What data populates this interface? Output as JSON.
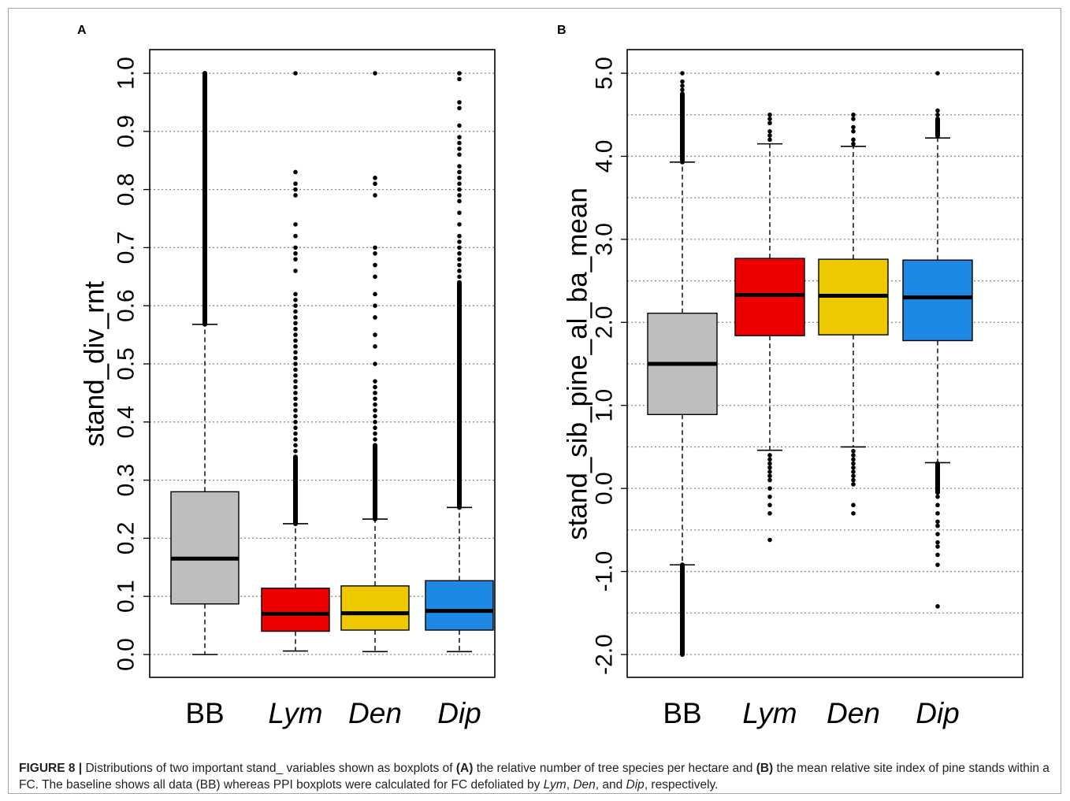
{
  "panels": [
    {
      "label": "A"
    },
    {
      "label": "B"
    }
  ],
  "caption": {
    "figure": "FIGURE 8 |",
    "pre": " Distributions of two important stand_ variables shown as boxplots of ",
    "a_label": "(A)",
    "mid1": " the relative number of tree species per hectare and ",
    "b_label": "(B)",
    "mid2": " the mean relative site index of pine stands within a FC. The baseline shows all data (BB) whereas PPI boxplots were calculated for FC defoliated by ",
    "lym": "Lym",
    "sep1": ", ",
    "den": "Den",
    "sep2": ", and ",
    "dip": "Dip",
    "post": ", respectively."
  },
  "chart_data": [
    {
      "type": "boxplot",
      "panel": "A",
      "ylabel": "stand_div_rnt",
      "ylim": [
        0.0,
        1.0
      ],
      "yticks": [
        "0.0",
        "0.1",
        "0.2",
        "0.3",
        "0.4",
        "0.5",
        "0.6",
        "0.7",
        "0.8",
        "0.9",
        "1.0"
      ],
      "grid": "horizontal dotted",
      "categories": [
        "BB",
        "Lym",
        "Den",
        "Dip"
      ],
      "category_italic": [
        false,
        true,
        true,
        true
      ],
      "colors": [
        "#bebebe",
        "#ee0000",
        "#eec900",
        "#1e88e5"
      ],
      "boxes": [
        {
          "whisker_low": 0.0,
          "q1": 0.087,
          "median": 0.165,
          "q3": 0.28,
          "whisker_high": 0.568,
          "outliers_dense_range": [
            0.568,
            1.0
          ],
          "outliers": []
        },
        {
          "whisker_low": 0.006,
          "q1": 0.04,
          "median": 0.07,
          "q3": 0.114,
          "whisker_high": 0.225,
          "outliers_dense_range": [
            0.225,
            0.34
          ],
          "outliers": [
            0.35,
            0.36,
            0.37,
            0.38,
            0.39,
            0.4,
            0.41,
            0.42,
            0.43,
            0.44,
            0.45,
            0.46,
            0.47,
            0.48,
            0.49,
            0.5,
            0.51,
            0.52,
            0.53,
            0.54,
            0.55,
            0.56,
            0.57,
            0.58,
            0.59,
            0.6,
            0.61,
            0.62,
            0.66,
            0.68,
            0.69,
            0.7,
            0.72,
            0.74,
            0.79,
            0.8,
            0.81,
            0.83,
            1.0
          ]
        },
        {
          "whisker_low": 0.005,
          "q1": 0.042,
          "median": 0.071,
          "q3": 0.118,
          "whisker_high": 0.233,
          "outliers_dense_range": [
            0.233,
            0.36
          ],
          "outliers": [
            0.37,
            0.38,
            0.39,
            0.4,
            0.41,
            0.42,
            0.43,
            0.44,
            0.45,
            0.46,
            0.47,
            0.5,
            0.53,
            0.55,
            0.58,
            0.6,
            0.62,
            0.65,
            0.67,
            0.69,
            0.7,
            0.79,
            0.81,
            0.82,
            1.0
          ]
        },
        {
          "whisker_low": 0.005,
          "q1": 0.042,
          "median": 0.075,
          "q3": 0.127,
          "whisker_high": 0.253,
          "outliers_dense_range": [
            0.253,
            0.64
          ],
          "outliers": [
            0.65,
            0.66,
            0.67,
            0.68,
            0.69,
            0.7,
            0.71,
            0.72,
            0.74,
            0.76,
            0.78,
            0.79,
            0.8,
            0.81,
            0.82,
            0.83,
            0.84,
            0.86,
            0.87,
            0.88,
            0.89,
            0.91,
            0.94,
            0.95,
            0.99,
            1.0
          ]
        }
      ]
    },
    {
      "type": "boxplot",
      "panel": "B",
      "ylabel": "stand_sib_pine_al_ba_mean",
      "ylim": [
        -2.2,
        5.3
      ],
      "yticks": [
        "-2.0",
        "-1.0",
        "0.0",
        "1.0",
        "2.0",
        "3.0",
        "4.0",
        "5.0"
      ],
      "grid": "horizontal dotted",
      "categories": [
        "BB",
        "Lym",
        "Den",
        "Dip"
      ],
      "category_italic": [
        false,
        true,
        true,
        true
      ],
      "colors": [
        "#bebebe",
        "#ee0000",
        "#eec900",
        "#1e88e5"
      ],
      "boxes": [
        {
          "whisker_low": -0.92,
          "q1": 0.89,
          "median": 1.5,
          "q3": 2.11,
          "whisker_high": 3.93,
          "outliers_dense_range": [
            3.93,
            4.75
          ],
          "outliers_dense_range_low": [
            -2.0,
            -0.92
          ],
          "outliers": [
            4.8,
            4.85,
            4.9,
            5.0
          ]
        },
        {
          "whisker_low": 0.46,
          "q1": 1.84,
          "median": 2.33,
          "q3": 2.77,
          "whisker_high": 4.15,
          "outliers_dense_range": [],
          "outliers_dense_range_low": [],
          "outliers": [
            4.2,
            4.25,
            4.3,
            4.4,
            4.45,
            4.5,
            0.4,
            0.35,
            0.3,
            0.25,
            0.2,
            0.15,
            0.1,
            0.0,
            -0.1,
            -0.2,
            -0.3,
            -0.62
          ]
        },
        {
          "whisker_low": 0.5,
          "q1": 1.85,
          "median": 2.32,
          "q3": 2.76,
          "whisker_high": 4.12,
          "outliers_dense_range": [],
          "outliers_dense_range_low": [],
          "outliers": [
            4.15,
            4.2,
            4.3,
            4.35,
            4.45,
            4.5,
            0.45,
            0.4,
            0.35,
            0.3,
            0.25,
            0.2,
            0.15,
            0.1,
            0.05,
            -0.2,
            -0.3
          ]
        },
        {
          "whisker_low": 0.31,
          "q1": 1.78,
          "median": 2.3,
          "q3": 2.75,
          "whisker_high": 4.22,
          "outliers_dense_range": [
            4.25,
            4.45
          ],
          "outliers_dense_range_low": [
            -0.05,
            0.3
          ],
          "outliers": [
            4.5,
            4.55,
            5.0,
            -0.1,
            -0.2,
            -0.3,
            -0.4,
            -0.45,
            -0.55,
            -0.65,
            -0.7,
            -0.8,
            -0.92,
            -1.42
          ]
        }
      ]
    }
  ]
}
